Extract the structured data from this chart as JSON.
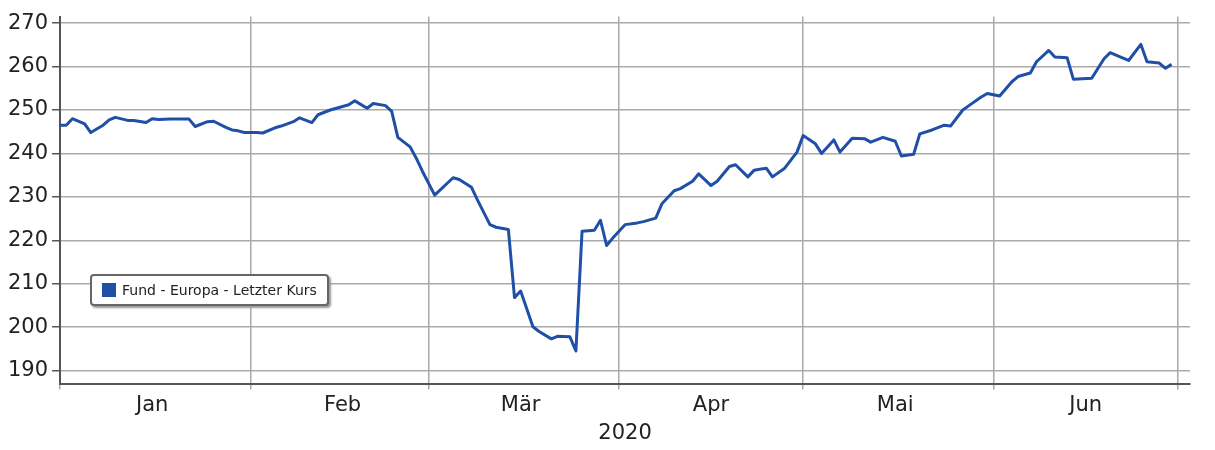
{
  "chart_data": {
    "type": "line",
    "xlabel": "2020",
    "xlim": [
      "2020-01-01",
      "2020-07-03"
    ],
    "ylim": [
      187,
      271.5
    ],
    "xticks": [
      {
        "value": "2020-01-01",
        "label": null
      },
      {
        "value": "2020-01-16",
        "label": "Jan"
      },
      {
        "value": "2020-02-01",
        "label": null
      },
      {
        "value": "2020-02-16",
        "label": "Feb"
      },
      {
        "value": "2020-03-01",
        "label": null
      },
      {
        "value": "2020-03-16",
        "label": "Mär"
      },
      {
        "value": "2020-04-01",
        "label": null
      },
      {
        "value": "2020-04-16",
        "label": "Apr"
      },
      {
        "value": "2020-05-01",
        "label": null
      },
      {
        "value": "2020-05-16",
        "label": "Mai"
      },
      {
        "value": "2020-06-01",
        "label": null
      },
      {
        "value": "2020-06-16",
        "label": "Jun"
      },
      {
        "value": "2020-07-01",
        "label": null
      }
    ],
    "yticks": [
      190,
      200,
      210,
      220,
      230,
      240,
      250,
      260,
      270
    ],
    "grid": true,
    "legend": "bottom left",
    "marker": "none",
    "line_style": "solid",
    "x": [
      "2020-01-01",
      "2020-01-02",
      "2020-01-03",
      "2020-01-05",
      "2020-01-06",
      "2020-01-08",
      "2020-01-09",
      "2020-01-10",
      "2020-01-12",
      "2020-01-13",
      "2020-01-15",
      "2020-01-16",
      "2020-01-17",
      "2020-01-19",
      "2020-01-20",
      "2020-01-22",
      "2020-01-23",
      "2020-01-25",
      "2020-01-26",
      "2020-01-28",
      "2020-01-29",
      "2020-01-30",
      "2020-01-31",
      "2020-02-02",
      "2020-02-03",
      "2020-02-05",
      "2020-02-06",
      "2020-02-08",
      "2020-02-09",
      "2020-02-11",
      "2020-02-12",
      "2020-02-14",
      "2020-02-15",
      "2020-02-17",
      "2020-02-18",
      "2020-02-20",
      "2020-02-21",
      "2020-02-23",
      "2020-02-24",
      "2020-02-25",
      "2020-02-27",
      "2020-02-28",
      "2020-02-29",
      "2020-03-02",
      "2020-03-05",
      "2020-03-06",
      "2020-03-08",
      "2020-03-09",
      "2020-03-11",
      "2020-03-12",
      "2020-03-14",
      "2020-03-15",
      "2020-03-16",
      "2020-03-18",
      "2020-03-19",
      "2020-03-21",
      "2020-03-22",
      "2020-03-24",
      "2020-03-25",
      "2020-03-26",
      "2020-03-28",
      "2020-03-29",
      "2020-03-30",
      "2020-03-31",
      "2020-04-02",
      "2020-04-04",
      "2020-04-05",
      "2020-04-07",
      "2020-04-08",
      "2020-04-10",
      "2020-04-11",
      "2020-04-13",
      "2020-04-14",
      "2020-04-16",
      "2020-04-17",
      "2020-04-19",
      "2020-04-20",
      "2020-04-22",
      "2020-04-23",
      "2020-04-25",
      "2020-04-26",
      "2020-04-28",
      "2020-04-30",
      "2020-05-01",
      "2020-05-03",
      "2020-05-04",
      "2020-05-06",
      "2020-05-07",
      "2020-05-09",
      "2020-05-11",
      "2020-05-12",
      "2020-05-14",
      "2020-05-16",
      "2020-05-17",
      "2020-05-19",
      "2020-05-20",
      "2020-05-22",
      "2020-05-24",
      "2020-05-25",
      "2020-05-27",
      "2020-05-28",
      "2020-05-30",
      "2020-05-31",
      "2020-06-02",
      "2020-06-04",
      "2020-06-05",
      "2020-06-07",
      "2020-06-08",
      "2020-06-10",
      "2020-06-11",
      "2020-06-13",
      "2020-06-14",
      "2020-06-17",
      "2020-06-19",
      "2020-06-20",
      "2020-06-22",
      "2020-06-23",
      "2020-06-25",
      "2020-06-26",
      "2020-06-28",
      "2020-06-29",
      "2020-06-30"
    ],
    "series": [
      {
        "name": "Fund - Europa - Letzter Kurs",
        "color": "#1f4fa6",
        "values": [
          246.5,
          246.5,
          248.0,
          246.8,
          244.8,
          246.5,
          247.7,
          248.3,
          247.6,
          247.6,
          247.1,
          248.0,
          247.8,
          247.9,
          247.9,
          247.9,
          246.2,
          247.3,
          247.4,
          246.0,
          245.4,
          245.2,
          244.8,
          244.8,
          244.7,
          245.9,
          246.3,
          247.3,
          248.2,
          247.1,
          248.9,
          250.0,
          250.4,
          251.2,
          252.1,
          250.4,
          251.5,
          251.0,
          249.7,
          243.7,
          241.5,
          238.9,
          235.9,
          230.4,
          234.4,
          234.0,
          232.2,
          229.2,
          223.6,
          223.0,
          222.5,
          206.8,
          208.3,
          200.1,
          199.0,
          197.3,
          197.9,
          197.8,
          194.5,
          222.1,
          222.3,
          224.6,
          218.8,
          220.5,
          223.6,
          224.0,
          224.3,
          225.1,
          228.4,
          231.4,
          231.9,
          233.6,
          235.3,
          232.6,
          233.6,
          237.0,
          237.4,
          234.6,
          236.1,
          236.6,
          234.6,
          236.6,
          240.3,
          244.1,
          242.2,
          240.0,
          243.1,
          240.3,
          243.5,
          243.4,
          242.6,
          243.7,
          242.8,
          239.4,
          239.8,
          244.5,
          245.4,
          246.5,
          246.3,
          250.0,
          251.0,
          253.0,
          253.8,
          253.2,
          256.5,
          257.7,
          258.5,
          261.1,
          263.7,
          262.2,
          262.0,
          257.1,
          257.3,
          261.8,
          263.2,
          262.0,
          261.4,
          265.1,
          261.1,
          260.8,
          259.6,
          260.5
        ]
      }
    ]
  }
}
